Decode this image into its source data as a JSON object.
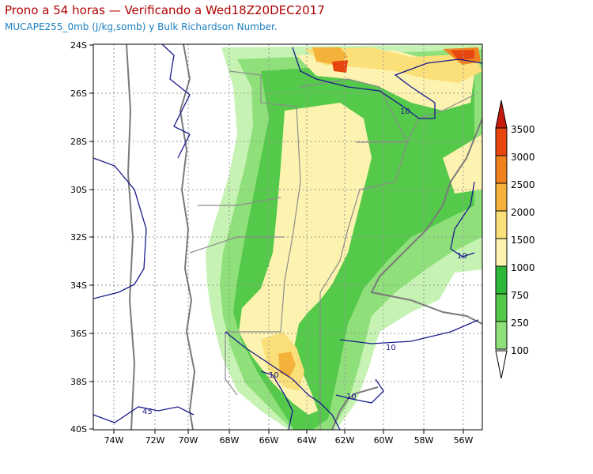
{
  "header": {
    "title": "Prono a 54 horas — Verificando a Wed18Z20DEC2017",
    "subtitle": "MUCAPE255_0mb (J/kg,somb) y Bulk Richardson Number."
  },
  "map": {
    "lat_labels": [
      "24S",
      "26S",
      "28S",
      "30S",
      "32S",
      "34S",
      "36S",
      "38S",
      "40S"
    ],
    "lon_labels": [
      "74W",
      "72W",
      "70W",
      "68W",
      "66W",
      "64W",
      "62W",
      "60W",
      "58W",
      "56W"
    ],
    "contour_labels": [
      "10",
      "10",
      "10",
      "10",
      "10",
      "45"
    ]
  },
  "colorbar": {
    "levels": [
      "100",
      "250",
      "750",
      "1000",
      "1500",
      "2000",
      "2500",
      "3000",
      "3500"
    ],
    "colors": [
      "#c6f3b3",
      "#8fe07a",
      "#55c94a",
      "#2eb83a",
      "#fdf3b0",
      "#fbe07a",
      "#f5b23a",
      "#f0821e",
      "#e8460f",
      "#c81a0a"
    ]
  }
}
